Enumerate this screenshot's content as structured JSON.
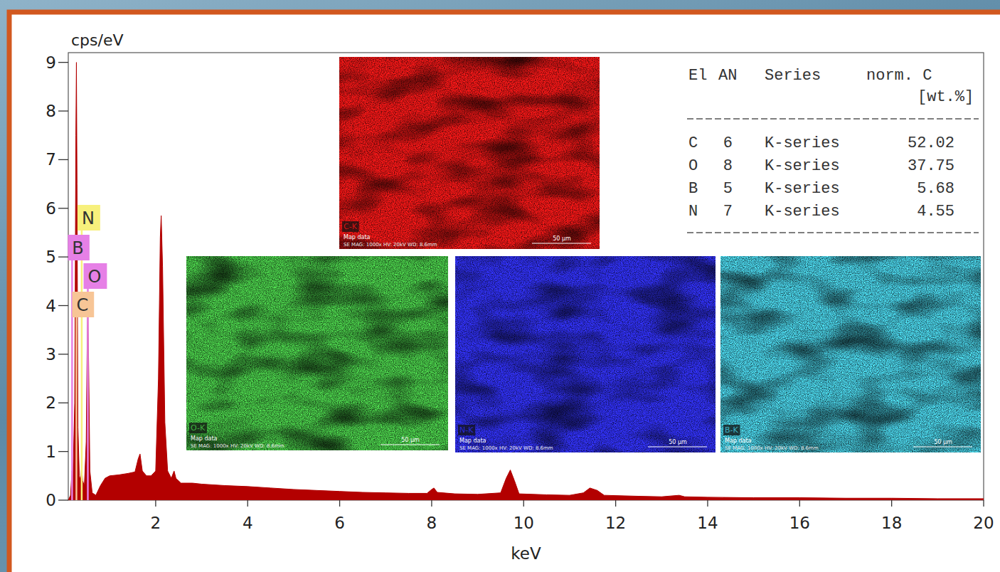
{
  "chart_data": {
    "type": "area",
    "x_label": "keV",
    "y_label": "cps/eV",
    "color": "#b30000",
    "xlim": [
      0.1,
      20
    ],
    "ylim": [
      0,
      9.2
    ],
    "xticks": [
      2,
      4,
      6,
      8,
      10,
      12,
      14,
      16,
      18,
      20
    ],
    "yticks": [
      0,
      1,
      2,
      3,
      4,
      5,
      6,
      7,
      8,
      9
    ],
    "x": [
      0.1,
      0.15,
      0.18,
      0.2,
      0.24,
      0.265,
      0.277,
      0.29,
      0.31,
      0.34,
      0.37,
      0.39,
      0.41,
      0.45,
      0.49,
      0.515,
      0.525,
      0.54,
      0.57,
      0.62,
      0.7,
      0.8,
      0.9,
      1.0,
      1.2,
      1.4,
      1.55,
      1.62,
      1.66,
      1.71,
      1.8,
      1.9,
      2.0,
      2.06,
      2.1,
      2.12,
      2.15,
      2.2,
      2.26,
      2.34,
      2.4,
      2.44,
      2.55,
      2.8,
      3.0,
      3.5,
      4.0,
      4.5,
      5.0,
      5.5,
      6.0,
      6.5,
      7.0,
      7.5,
      7.9,
      8.0,
      8.05,
      8.12,
      8.5,
      9.0,
      9.5,
      9.62,
      9.71,
      9.8,
      9.9,
      10.5,
      11.0,
      11.3,
      11.44,
      11.6,
      11.75,
      12.5,
      13.0,
      13.38,
      13.5,
      14.0,
      15.0,
      16.0,
      17.0,
      18.0,
      19.0,
      20.0
    ],
    "values": [
      0,
      0.1,
      0.6,
      0.4,
      2.0,
      7.5,
      9.0,
      6.5,
      1.5,
      0.5,
      0.4,
      0.7,
      0.4,
      0.3,
      1.2,
      3.6,
      4.1,
      3.0,
      0.6,
      0.15,
      0.1,
      0.3,
      0.45,
      0.5,
      0.52,
      0.55,
      0.58,
      0.85,
      0.95,
      0.6,
      0.5,
      0.5,
      0.6,
      2.5,
      5.4,
      5.85,
      4.8,
      1.6,
      0.6,
      0.45,
      0.6,
      0.45,
      0.35,
      0.35,
      0.33,
      0.3,
      0.28,
      0.25,
      0.22,
      0.2,
      0.18,
      0.16,
      0.15,
      0.14,
      0.14,
      0.22,
      0.25,
      0.16,
      0.13,
      0.12,
      0.15,
      0.45,
      0.62,
      0.4,
      0.13,
      0.11,
      0.1,
      0.15,
      0.25,
      0.2,
      0.1,
      0.08,
      0.07,
      0.1,
      0.07,
      0.06,
      0.05,
      0.05,
      0.04,
      0.04,
      0.03,
      0.03
    ],
    "element_markers": [
      {
        "label": "N",
        "energy": 0.392,
        "color": "#f7f07c"
      },
      {
        "label": "B",
        "energy": 0.183,
        "color": "#e680e6"
      },
      {
        "label": "O",
        "energy": 0.525,
        "color": "#e680e6"
      },
      {
        "label": "C",
        "energy": 0.277,
        "color": "#f7c596"
      }
    ]
  },
  "quant_table": {
    "header": [
      "El",
      "AN",
      "Series",
      "norm. C"
    ],
    "unit": "[wt.%]",
    "rows": [
      [
        "C",
        6,
        "K-series",
        52.02
      ],
      [
        "O",
        8,
        "K-series",
        37.75
      ],
      [
        "B",
        5,
        "K-series",
        5.68
      ],
      [
        "N",
        7,
        "K-series",
        4.55
      ]
    ]
  },
  "element_maps": [
    {
      "label": "C-K",
      "color": "#d41414",
      "caption": "Map data",
      "info": "SE MAG: 1000x HV: 20kV WD: 8.6mm",
      "scale_bar": "50 µm"
    },
    {
      "label": "O-K",
      "color": "#3fae3f",
      "caption": "Map data",
      "info": "SE MAG: 1000x HV: 20kV WD: 8.6mm",
      "scale_bar": "50 µm"
    },
    {
      "label": "N-K",
      "color": "#2a2ad6",
      "caption": "Map data",
      "info": "SE MAG: 1000x HV: 20kV WD: 8.6mm",
      "scale_bar": "50 µm"
    },
    {
      "label": "B-K",
      "color": "#3fb3c6",
      "caption": "Map data",
      "info": "SE MAG: 1000x HV: 20kV WD: 8.6mm",
      "scale_bar": "50 µm"
    }
  ]
}
